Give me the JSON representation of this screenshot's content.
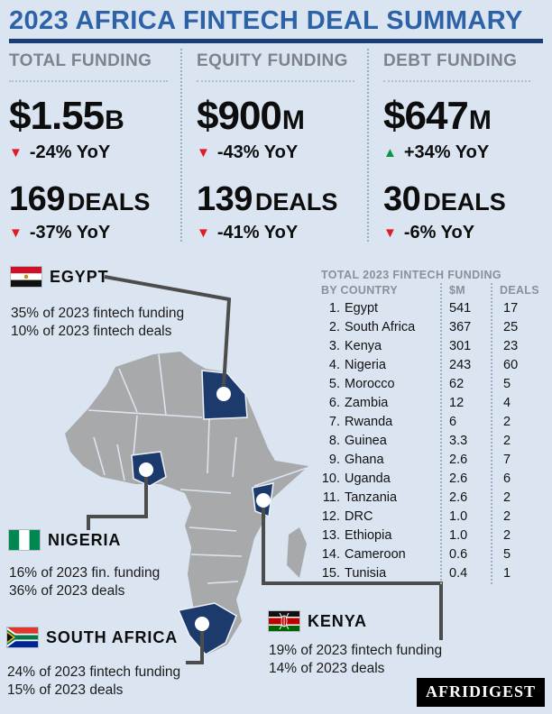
{
  "page": {
    "title": "2023 AFRICA FINTECH DEAL SUMMARY"
  },
  "colors": {
    "background": "#dbe5f1",
    "accent_blue": "#2d62a6",
    "rule_navy": "#1c3c74",
    "country_highlight": "#1d3a6d",
    "map_gray": "#a7a9ab",
    "trend_red": "#e01b22",
    "trend_green": "#0a9340",
    "label_gray": "#7d828c"
  },
  "stats": [
    {
      "label": "TOTAL FUNDING",
      "amount": "$1.55",
      "amount_unit": "B",
      "amount_trend": "down",
      "amount_change": "-24% YoY",
      "deals": "169",
      "deals_label": "DEALS",
      "deals_trend": "down",
      "deals_change": "-37% YoY"
    },
    {
      "label": "EQUITY FUNDING",
      "amount": "$900",
      "amount_unit": "M",
      "amount_trend": "down",
      "amount_change": "-43% YoY",
      "deals": "139",
      "deals_label": "DEALS",
      "deals_trend": "down",
      "deals_change": "-41% YoY"
    },
    {
      "label": "DEBT FUNDING",
      "amount": "$647",
      "amount_unit": "M",
      "amount_trend": "up",
      "amount_change": "+34% YoY",
      "deals": "30",
      "deals_label": "DEALS",
      "deals_trend": "down",
      "deals_change": "-6% YoY"
    }
  ],
  "callouts": {
    "egypt": {
      "name": "EGYPT",
      "flag": "egypt-flag-icon",
      "line1": "35% of 2023 fintech funding",
      "line2": "10% of 2023 fintech deals"
    },
    "nigeria": {
      "name": "NIGERIA",
      "flag": "nigeria-flag-icon",
      "line1": "16% of 2023 fin. funding",
      "line2": "36% of 2023 deals"
    },
    "south_africa": {
      "name": "SOUTH AFRICA",
      "flag": "south-africa-flag-icon",
      "line1": "24% of 2023 fintech funding",
      "line2": "15% of 2023 deals"
    },
    "kenya": {
      "name": "KENYA",
      "flag": "kenya-flag-icon",
      "line1": "19% of 2023 fintech funding",
      "line2": "14% of 2023 deals"
    }
  },
  "table": {
    "title": "TOTAL 2023 FINTECH FUNDING",
    "col_country": "BY COUNTRY",
    "col_amount": "$M",
    "col_deals": "DEALS",
    "rows": [
      {
        "rank": "1.",
        "country": "Egypt",
        "amount": "541",
        "deals": "17"
      },
      {
        "rank": "2.",
        "country": "South Africa",
        "amount": "367",
        "deals": "25"
      },
      {
        "rank": "3.",
        "country": "Kenya",
        "amount": "301",
        "deals": "23"
      },
      {
        "rank": "4.",
        "country": "Nigeria",
        "amount": "243",
        "deals": "60"
      },
      {
        "rank": "5.",
        "country": "Morocco",
        "amount": "62",
        "deals": "5"
      },
      {
        "rank": "6.",
        "country": "Zambia",
        "amount": "12",
        "deals": "4"
      },
      {
        "rank": "7.",
        "country": "Rwanda",
        "amount": "6",
        "deals": "2"
      },
      {
        "rank": "8.",
        "country": "Guinea",
        "amount": "3.3",
        "deals": "2"
      },
      {
        "rank": "9.",
        "country": "Ghana",
        "amount": "2.6",
        "deals": "7"
      },
      {
        "rank": "10.",
        "country": "Uganda",
        "amount": "2.6",
        "deals": "6"
      },
      {
        "rank": "11.",
        "country": "Tanzania",
        "amount": "2.6",
        "deals": "2"
      },
      {
        "rank": "12.",
        "country": "DRC",
        "amount": "1.0",
        "deals": "2"
      },
      {
        "rank": "13.",
        "country": "Ethiopia",
        "amount": "1.0",
        "deals": "2"
      },
      {
        "rank": "14.",
        "country": "Cameroon",
        "amount": "0.6",
        "deals": "5"
      },
      {
        "rank": "15.",
        "country": "Tunisia",
        "amount": "0.4",
        "deals": "1"
      }
    ]
  },
  "logo": {
    "text": "AFRIDIGEST"
  },
  "chart_data": {
    "type": "table",
    "title": "TOTAL 2023 FINTECH FUNDING BY COUNTRY",
    "columns": [
      "Country",
      "$M",
      "Deals"
    ],
    "rows": [
      [
        "Egypt",
        541,
        17
      ],
      [
        "South Africa",
        367,
        25
      ],
      [
        "Kenya",
        301,
        23
      ],
      [
        "Nigeria",
        243,
        60
      ],
      [
        "Morocco",
        62,
        5
      ],
      [
        "Zambia",
        12,
        4
      ],
      [
        "Rwanda",
        6,
        2
      ],
      [
        "Guinea",
        3.3,
        2
      ],
      [
        "Ghana",
        2.6,
        7
      ],
      [
        "Uganda",
        2.6,
        6
      ],
      [
        "Tanzania",
        2.6,
        2
      ],
      [
        "DRC",
        1.0,
        2
      ],
      [
        "Ethiopia",
        1.0,
        2
      ],
      [
        "Cameroon",
        0.6,
        5
      ],
      [
        "Tunisia",
        0.4,
        1
      ]
    ],
    "headline_stats": {
      "total_funding": {
        "value": "$1.55B",
        "yoy": "-24%",
        "deals": 169,
        "deals_yoy": "-37%"
      },
      "equity_funding": {
        "value": "$900M",
        "yoy": "-43%",
        "deals": 139,
        "deals_yoy": "-41%"
      },
      "debt_funding": {
        "value": "$647M",
        "yoy": "+34%",
        "deals": 30,
        "deals_yoy": "-6%"
      }
    },
    "country_share_callouts": {
      "Egypt": {
        "funding_share": "35%",
        "deal_share": "10%"
      },
      "Nigeria": {
        "funding_share": "16%",
        "deal_share": "36%"
      },
      "South Africa": {
        "funding_share": "24%",
        "deal_share": "15%"
      },
      "Kenya": {
        "funding_share": "19%",
        "deal_share": "14%"
      }
    }
  }
}
